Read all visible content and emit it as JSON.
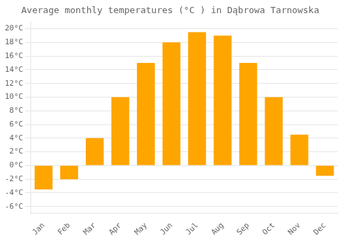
{
  "chart_data": {
    "type": "bar",
    "title": "Average monthly temperatures (°C ) in Dąbrowa Tarnowska",
    "categories": [
      "Jan",
      "Feb",
      "Mar",
      "Apr",
      "May",
      "Jun",
      "Jul",
      "Aug",
      "Sep",
      "Oct",
      "Nov",
      "Dec"
    ],
    "values": [
      -3.5,
      -2.0,
      4.0,
      10.0,
      15.0,
      18.0,
      19.5,
      19.0,
      15.0,
      10.0,
      4.5,
      -1.5
    ],
    "color": "#FFA500",
    "ylim": [
      -7,
      21
    ],
    "yticks": [
      {
        "value": -6,
        "label": "-6°C"
      },
      {
        "value": -4,
        "label": "-4°C"
      },
      {
        "value": -2,
        "label": "-2°C"
      },
      {
        "value": 0,
        "label": "0°C"
      },
      {
        "value": 2,
        "label": "2°C"
      },
      {
        "value": 4,
        "label": "4°C"
      },
      {
        "value": 6,
        "label": "6°C"
      },
      {
        "value": 8,
        "label": "8°C"
      },
      {
        "value": 10,
        "label": "10°C"
      },
      {
        "value": 12,
        "label": "12°C"
      },
      {
        "value": 14,
        "label": "14°C"
      },
      {
        "value": 16,
        "label": "16°C"
      },
      {
        "value": 18,
        "label": "18°C"
      },
      {
        "value": 20,
        "label": "20°C"
      }
    ],
    "grid": true
  }
}
